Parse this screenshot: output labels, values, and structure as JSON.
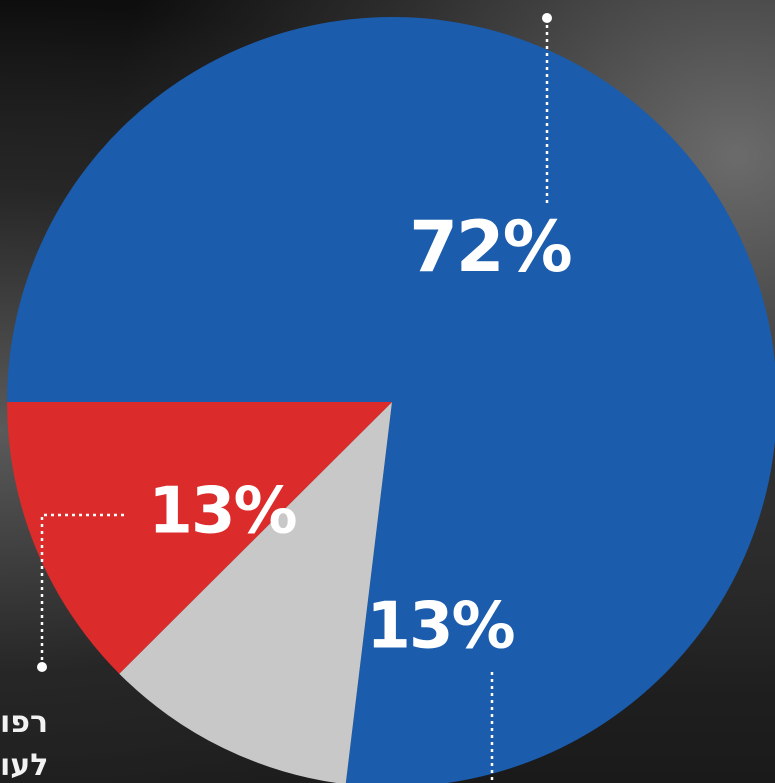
{
  "chart_data": {
    "type": "pie",
    "slices": [
      {
        "label": "72%",
        "value": 72,
        "color": "#1b5cac"
      },
      {
        "label": "13%",
        "value": 13,
        "color": "#c8c8c8"
      },
      {
        "label": "13%",
        "value": 13,
        "color": "#dc2b2b"
      }
    ],
    "title": "",
    "legend": "none"
  },
  "side_text": {
    "line1": "רפו",
    "line2": "לעו"
  },
  "colors": {
    "label_text": "#ffffff",
    "leader_line": "#ffffff"
  }
}
